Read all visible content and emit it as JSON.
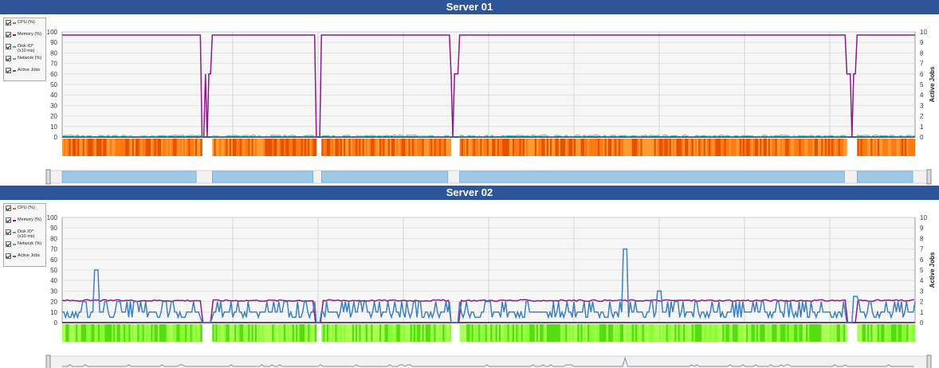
{
  "legend_items": [
    {
      "label": "CPU (%)",
      "color": "#e8601c"
    },
    {
      "label": "Memory (%)",
      "color": "#8b1a8b"
    },
    {
      "label": "Disk IO*\n(x10 ms)",
      "color": "#33bbbb"
    },
    {
      "label": "Network (%)",
      "color": "#4aa8d8"
    },
    {
      "label": "Active Jobs",
      "color": "#2e6aa8"
    }
  ],
  "chart_data": [
    {
      "type": "line",
      "title": "Server 01",
      "ylim": [
        0,
        100
      ],
      "y2lim": [
        0,
        10
      ],
      "y2label": "Active Jobs",
      "yticks": [
        0,
        10,
        20,
        30,
        40,
        50,
        60,
        70,
        80,
        90,
        100
      ],
      "y2ticks": [
        0,
        1,
        2,
        3,
        4,
        5,
        6,
        7,
        8,
        9,
        10
      ],
      "grid": true,
      "legend_position": "left",
      "x_range": [
        0,
        1000
      ],
      "gaps": [
        [
          164,
          176
        ],
        [
          297,
          304
        ],
        [
          455,
          466
        ],
        [
          920,
          932
        ]
      ],
      "series": [
        {
          "name": "Memory (%)",
          "color": "#8b1a8b",
          "baseline": 97,
          "dips": [
            [
              164,
              176
            ],
            [
              297,
              304
            ],
            [
              455,
              466
            ],
            [
              920,
              932
            ]
          ]
        },
        {
          "name": "Disk IO*",
          "color": "#33bbbb",
          "level": 1.5
        },
        {
          "name": "Active Jobs",
          "color": "#2e6aa8",
          "level": 0
        }
      ],
      "band_color": "#ff6a00",
      "navigator_color": "#9ec9e8"
    },
    {
      "type": "line",
      "title": "Server 02",
      "ylim": [
        0,
        100
      ],
      "y2lim": [
        0,
        10
      ],
      "y2label": "Active Jobs",
      "yticks": [
        0,
        10,
        20,
        30,
        40,
        50,
        60,
        70,
        80,
        90,
        100
      ],
      "y2ticks": [
        0,
        1,
        2,
        3,
        4,
        5,
        6,
        7,
        8,
        9,
        10
      ],
      "grid": true,
      "legend_position": "left",
      "x_range": [
        0,
        1000
      ],
      "gaps": [
        [
          164,
          176
        ],
        [
          297,
          304
        ],
        [
          455,
          466
        ],
        [
          920,
          932
        ]
      ],
      "series": [
        {
          "name": "Memory (%)",
          "color": "#8b1a8b",
          "baseline": 21
        },
        {
          "name": "Active Jobs",
          "color": "#3f7fbf",
          "peaks": [
            [
              40,
              50
            ],
            [
              120,
              20
            ],
            [
              660,
              70
            ],
            [
              700,
              30
            ],
            [
              930,
              25
            ]
          ]
        }
      ],
      "band_color": "#66ee22",
      "navigator_color": "#7f8fa0"
    }
  ]
}
